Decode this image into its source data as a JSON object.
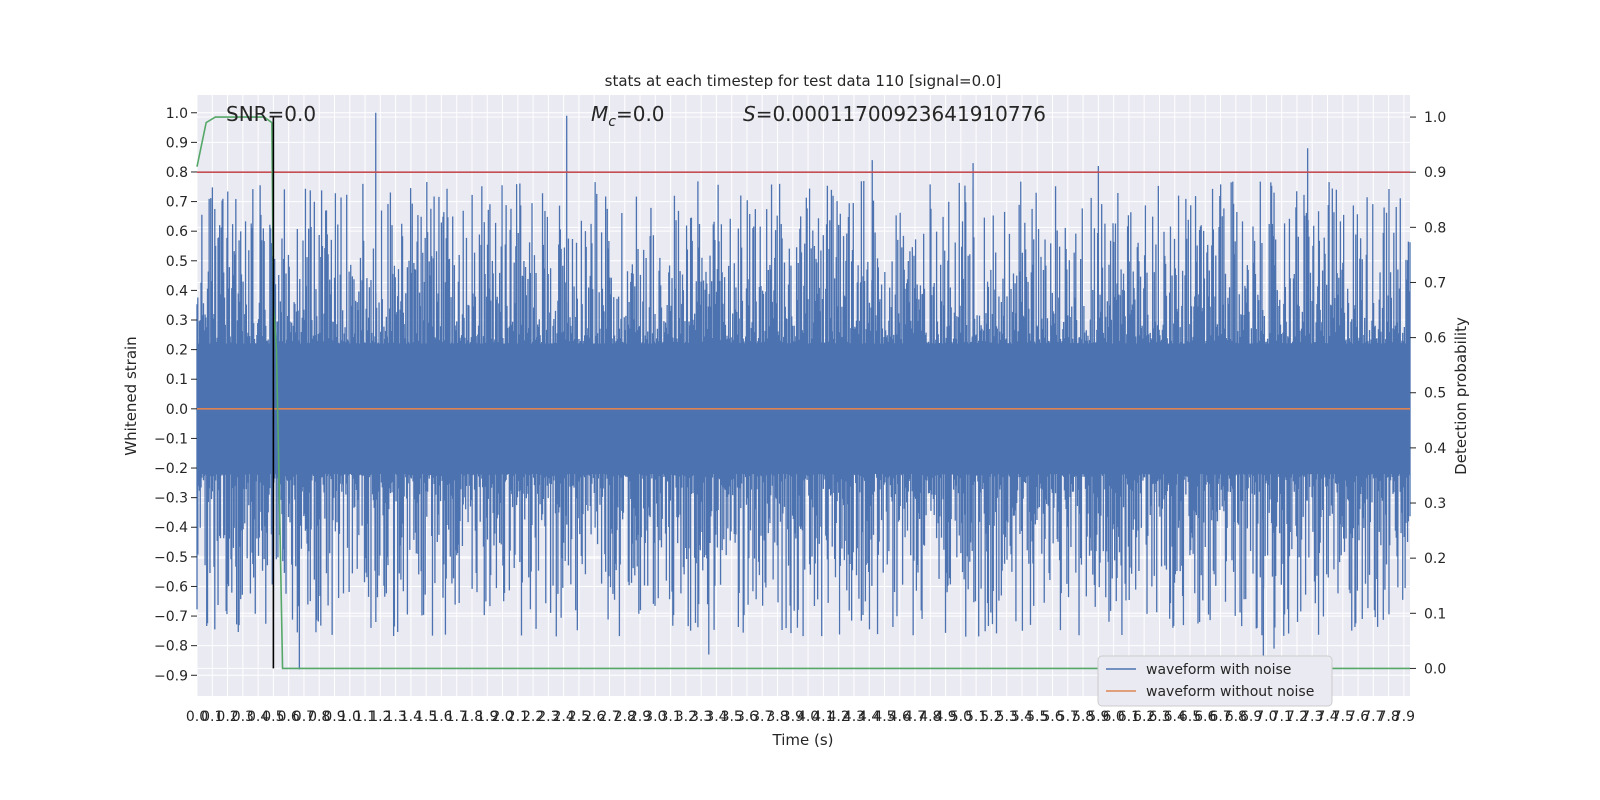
{
  "chart_data": {
    "type": "line",
    "title": "stats at each timestep for test data 110 [signal=0.0]",
    "xlabel": "Time (s)",
    "ylabel": "Whitened strain",
    "y2label": "Detection probability",
    "xlim": [
      0.0,
      7.94
    ],
    "ylim": [
      -0.97,
      1.06
    ],
    "y2lim": [
      -0.05,
      1.04
    ],
    "x_ticks": [
      "0.0",
      "0.1",
      "0.2",
      "0.3",
      "0.4",
      "0.5",
      "0.6",
      "0.7",
      "0.8",
      "0.9",
      "1.0",
      "1.1",
      "1.2",
      "1.3",
      "1.4",
      "1.5",
      "1.6",
      "1.7",
      "1.8",
      "1.9",
      "2.0",
      "2.1",
      "2.2",
      "2.3",
      "2.4",
      "2.5",
      "2.6",
      "2.7",
      "2.8",
      "2.9",
      "3.0",
      "3.1",
      "3.2",
      "3.3",
      "3.4",
      "3.5",
      "3.6",
      "3.7",
      "3.8",
      "3.9",
      "4.0",
      "4.1",
      "4.2",
      "4.3",
      "4.4",
      "4.5",
      "4.6",
      "4.7",
      "4.8",
      "4.9",
      "5.0",
      "5.1",
      "5.2",
      "5.3",
      "5.4",
      "5.5",
      "5.6",
      "5.7",
      "5.8",
      "5.9",
      "6.0",
      "6.1",
      "6.2",
      "6.3",
      "6.4",
      "6.5",
      "6.6",
      "6.7",
      "6.8",
      "6.9",
      "7.0",
      "7.1",
      "7.2",
      "7.3",
      "7.4",
      "7.5",
      "7.6",
      "7.7",
      "7.8",
      "7.9"
    ],
    "y_ticks": [
      "-0.9",
      "-0.8",
      "-0.7",
      "-0.6",
      "-0.5",
      "-0.4",
      "-0.3",
      "-0.2",
      "-0.1",
      "0.0",
      "0.1",
      "0.2",
      "0.3",
      "0.4",
      "0.5",
      "0.6",
      "0.7",
      "0.8",
      "0.9",
      "1.0"
    ],
    "y2_ticks": [
      "0.0",
      "0.1",
      "0.2",
      "0.3",
      "0.4",
      "0.5",
      "0.6",
      "0.7",
      "0.8",
      "0.9",
      "1.0"
    ],
    "annotations": {
      "snr": "SNR=0.0",
      "mc": "M",
      "mc_sub": "c",
      "mc_val": "=0.0",
      "s": "S",
      "s_val": "=0.00011700923641910776"
    },
    "threshold": 0.9,
    "marker_time": 0.5,
    "noise_envelope": {
      "description_values_only": true,
      "peak_high": [
        1.0,
        0.99,
        0.88,
        0.84,
        0.83,
        0.82
      ],
      "peak_high_times": [
        1.17,
        2.42,
        7.27,
        4.42,
        5.08,
        5.9
      ],
      "peak_low_times": [
        0.67,
        3.35,
        6.98,
        7.05
      ],
      "peak_low_values": [
        -0.88,
        -0.83,
        -0.86,
        -0.81
      ]
    },
    "detection_probability": {
      "t": [
        0.0,
        0.06,
        0.12,
        0.2,
        0.3,
        0.4,
        0.44,
        0.49,
        0.5,
        0.52,
        0.54,
        0.56,
        0.6,
        1.0,
        2.0,
        4.0,
        6.0,
        7.94
      ],
      "p": [
        0.91,
        0.99,
        1.0,
        1.0,
        1.0,
        1.0,
        1.0,
        0.99,
        0.66,
        0.58,
        0.3,
        0.0,
        0.0,
        0.0,
        0.0,
        0.0,
        0.0,
        0.0
      ]
    },
    "series": [
      {
        "name": "waveform with noise",
        "color": "#4c72b0"
      },
      {
        "name": "waveform without noise",
        "color": "#dd8452"
      }
    ],
    "prob_color": "#55a868",
    "threshold_color": "#c44e52",
    "marker_color": "#000000",
    "background": "#eaeaf2",
    "grid": true,
    "legend_position": "lower-right"
  }
}
